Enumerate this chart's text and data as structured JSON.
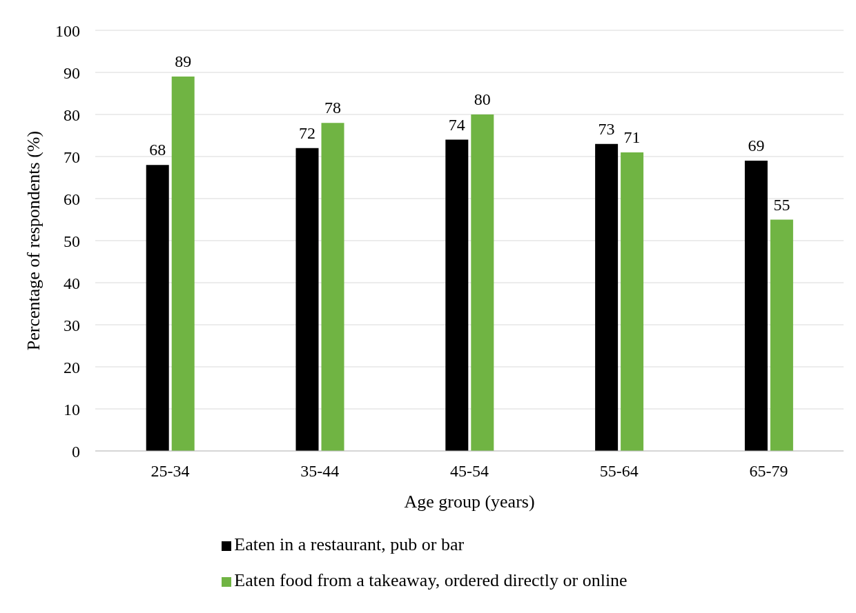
{
  "chart_data": {
    "type": "bar",
    "xlabel": "Age group (years)",
    "ylabel": "Percentage of respondents (%)",
    "categories": [
      "25-34",
      "35-44",
      "45-54",
      "55-64",
      "65-79"
    ],
    "series": [
      {
        "name": "Eaten in a restaurant, pub or bar",
        "color": "#000000",
        "values": [
          68,
          72,
          74,
          73,
          69
        ]
      },
      {
        "name": "Eaten food from a takeaway, ordered directly or online",
        "color": "#70b443",
        "values": [
          89,
          78,
          80,
          71,
          55
        ]
      }
    ],
    "ylim": [
      0,
      100
    ],
    "yticks": [
      0,
      10,
      20,
      30,
      40,
      50,
      60,
      70,
      80,
      90,
      100
    ],
    "grid": "y",
    "legend": "bottom",
    "data_labels": true
  }
}
